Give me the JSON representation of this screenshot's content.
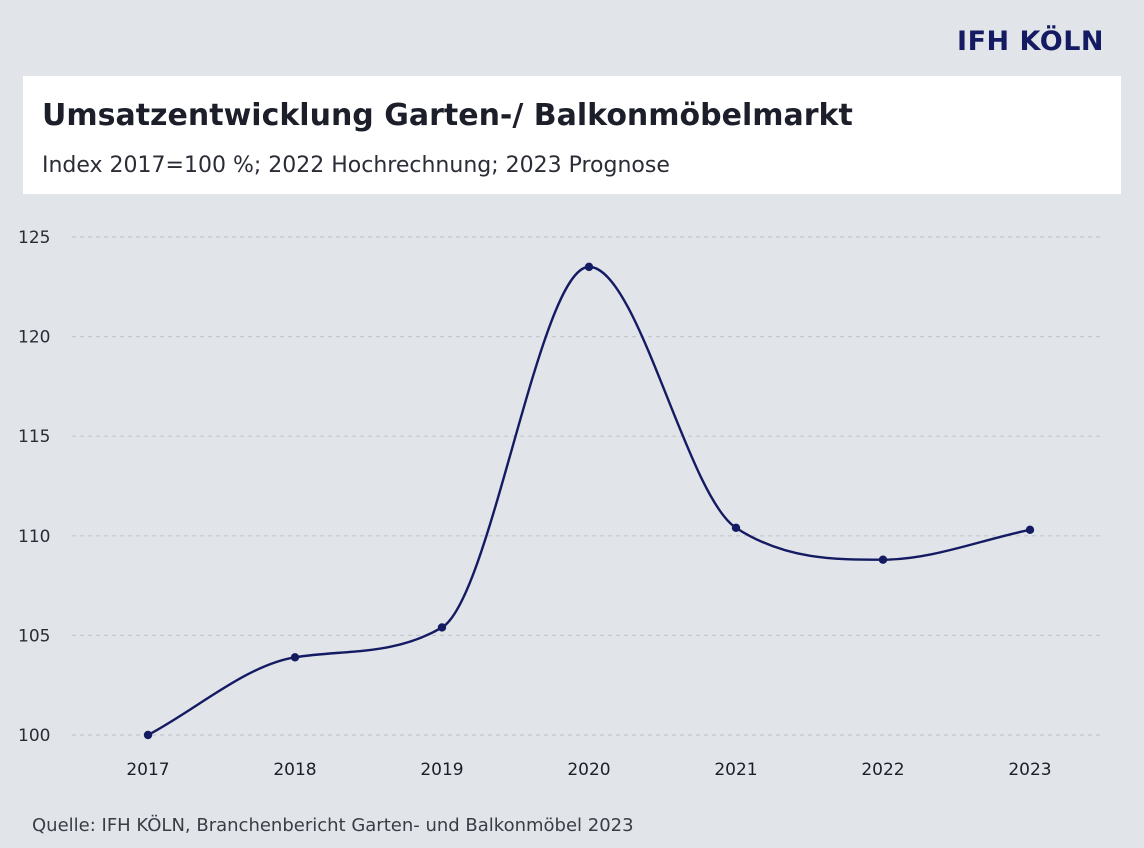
{
  "brand": {
    "logo_text": "IFH KÖLN"
  },
  "source": "Quelle: IFH KÖLN, Branchenbericht Garten- und Balkonmöbel 2023",
  "colors": {
    "background": "#e1e4e8",
    "line": "#141b63",
    "grid": "#c4c8ce",
    "title_box": "#ffffff"
  },
  "chart_data": {
    "type": "line",
    "title": "Umsatzentwicklung Garten-/ Balkonmöbelmarkt",
    "subtitle": "Index 2017=100 %; 2022 Hochrechnung; 2023 Prognose",
    "categories": [
      "2017",
      "2018",
      "2019",
      "2020",
      "2021",
      "2022",
      "2023"
    ],
    "series": [
      {
        "values": [
          100,
          103.9,
          105.4,
          123.5,
          110.4,
          108.8,
          110.3
        ]
      }
    ],
    "ylim": [
      100,
      125
    ],
    "yticks": [
      100,
      105,
      110,
      115,
      120,
      125
    ],
    "grid": true,
    "xlabel": "",
    "ylabel": ""
  }
}
